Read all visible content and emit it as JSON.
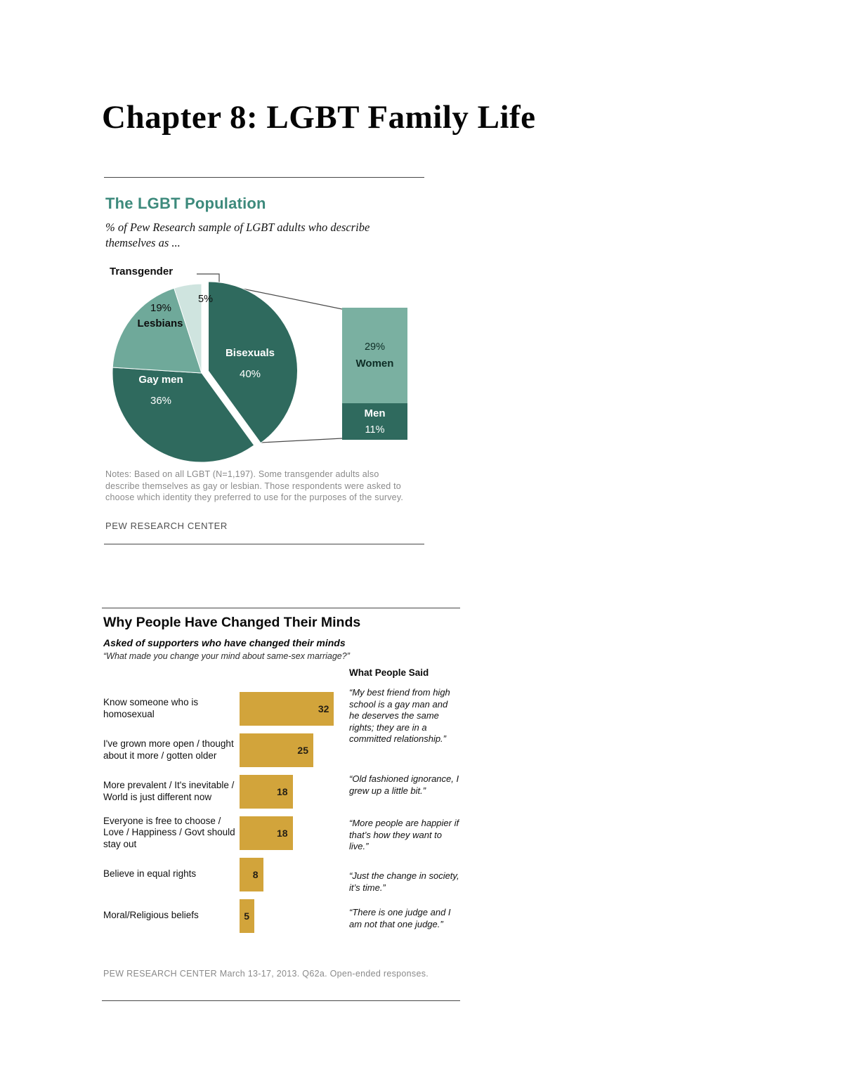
{
  "page": {
    "title": "Chapter 8: LGBT Family Life"
  },
  "chart_data": [
    {
      "type": "pie",
      "title": "The LGBT Population",
      "subtitle": "% of Pew Research sample of LGBT adults who describe themselves as ...",
      "slices": [
        {
          "label": "Bisexuals",
          "value": 40,
          "color": "#2f6a5e",
          "exploded": true
        },
        {
          "label": "Gay men",
          "value": 36,
          "color": "#2f6a5e",
          "exploded": false
        },
        {
          "label": "Lesbians",
          "value": 19,
          "color": "#6fa99a",
          "exploded": false
        },
        {
          "label": "Transgender",
          "value": 5,
          "color": "#cfe4df",
          "exploded": false
        }
      ],
      "breakout": {
        "applies_to": "Bisexuals",
        "segments": [
          {
            "label": "Women",
            "value": 29,
            "color": "#7ab0a1",
            "text_color": "#0e2d26"
          },
          {
            "label": "Men",
            "value": 11,
            "color": "#2f6a5e",
            "text_color": "#ffffff"
          }
        ]
      },
      "notes": "Notes: Based on all LGBT (N=1,197).  Some transgender adults also describe themselves as gay or lesbian. Those respondents were asked to choose which identity they preferred to use for the purposes of the survey.",
      "source": "PEW RESEARCH CENTER"
    },
    {
      "type": "bar",
      "orientation": "horizontal",
      "title": "Why People Have Changed Their Minds",
      "subtitle": "Asked of supporters who have changed their minds",
      "question": "“What made you change your mind about same-sex marriage?”",
      "quotes_header": "What People Said",
      "categories": [
        "Know someone who is homosexual",
        "I've grown more open / thought about it more / gotten older",
        "More prevalent / It's inevitable / World is just different now",
        "Everyone is free to choose / Love / Happiness / Govt should stay out",
        "Believe in equal rights",
        "Moral/Religious beliefs"
      ],
      "values": [
        32,
        25,
        18,
        18,
        8,
        5
      ],
      "bar_color": "#d2a43b",
      "xlim": [
        0,
        35
      ],
      "legend": "none",
      "quotes": [
        "“My best friend from high school is a gay man and he deserves the same rights; they are in a committed relationship.”",
        "“Old fashioned ignorance, I grew up a little bit.”",
        "“More people are happier if that’s how they want to live.”",
        "“Just the change in society, it’s time.”",
        "“There is one judge and I am not that one judge.”"
      ],
      "source": "PEW RESEARCH CENTER March 13-17, 2013. Q62a. Open-ended responses."
    }
  ]
}
